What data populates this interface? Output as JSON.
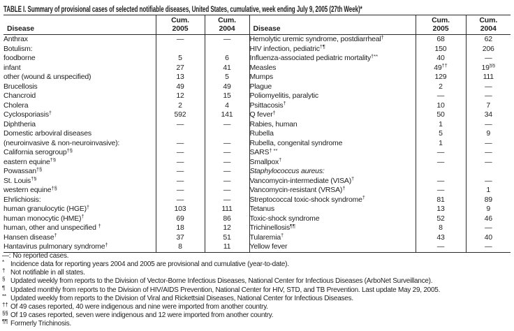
{
  "title": "TABLE I. Summary of provisional cases of selected notifiable diseases, United States, cumulative, week ending July 9, 2005 (27th Week)*",
  "header": {
    "disease": "Disease",
    "cum": "Cum.",
    "y2005": "2005",
    "y2004": "2004"
  },
  "left_rows": [
    {
      "label": "Anthrax",
      "indent": 0,
      "v05": "—",
      "v04": "—"
    },
    {
      "label": "Botulism:",
      "indent": 0,
      "v05": "",
      "v04": ""
    },
    {
      "label": "foodborne",
      "indent": 2,
      "v05": "5",
      "v04": "6"
    },
    {
      "label": "infant",
      "indent": 2,
      "v05": "27",
      "v04": "41"
    },
    {
      "label": "other (wound & unspecified)",
      "indent": 2,
      "v05": "13",
      "v04": "5"
    },
    {
      "label": "Brucellosis",
      "indent": 0,
      "v05": "49",
      "v04": "49"
    },
    {
      "label": "Chancroid",
      "indent": 0,
      "v05": "12",
      "v04": "15"
    },
    {
      "label": "Cholera",
      "indent": 0,
      "v05": "2",
      "v04": "4"
    },
    {
      "label": "Cyclosporiasis",
      "sup": "†",
      "indent": 0,
      "v05": "592",
      "v04": "141"
    },
    {
      "label": "Diphtheria",
      "indent": 0,
      "v05": "—",
      "v04": "—"
    },
    {
      "label": "Domestic arboviral diseases",
      "indent": 0,
      "v05": "",
      "v04": ""
    },
    {
      "label": "(neuroinvasive & non-neuroinvasive):",
      "indent": 1,
      "v05": "—",
      "v04": "—"
    },
    {
      "label": "California serogroup",
      "sup": "†§",
      "indent": 2,
      "v05": "—",
      "v04": "—"
    },
    {
      "label": "eastern equine",
      "sup": "†§",
      "indent": 2,
      "v05": "—",
      "v04": "—"
    },
    {
      "label": "Powassan",
      "sup": "†§",
      "indent": 2,
      "v05": "—",
      "v04": "—"
    },
    {
      "label": "St. Louis",
      "sup": "†§",
      "indent": 2,
      "v05": "—",
      "v04": "—"
    },
    {
      "label": "western equine",
      "sup": "†§",
      "indent": 2,
      "v05": "—",
      "v04": "—"
    },
    {
      "label": "Ehrlichiosis:",
      "indent": 0,
      "v05": "—",
      "v04": "—"
    },
    {
      "label": "human granulocytic (HGE)",
      "sup": "†",
      "indent": 2,
      "v05": "103",
      "v04": "111"
    },
    {
      "label": "human monocytic (HME)",
      "sup": "†",
      "indent": 2,
      "v05": "69",
      "v04": "86"
    },
    {
      "label": "human, other and unspecified ",
      "sup": "†",
      "indent": 2,
      "v05": "18",
      "v04": "12"
    },
    {
      "label": "Hansen disease",
      "sup": "†",
      "indent": 0,
      "v05": "37",
      "v04": "51"
    },
    {
      "label": "Hantavirus pulmonary syndrome",
      "sup": "†",
      "indent": 0,
      "v05": "8",
      "v04": "11"
    }
  ],
  "right_rows": [
    {
      "label": "Hemolytic uremic syndrome, postdiarrheal",
      "sup": "†",
      "indent": 0,
      "v05": "68",
      "v04": "62"
    },
    {
      "label": "HIV infection, pediatric",
      "sup": "†¶",
      "indent": 0,
      "v05": "150",
      "v04": "206"
    },
    {
      "label": "Influenza-associated pediatric mortality",
      "sup": "†**",
      "indent": 0,
      "v05": "40",
      "v04": "—"
    },
    {
      "label": "Measles",
      "indent": 0,
      "v05": "49",
      "v05sup": "††",
      "v04": "19",
      "v04sup": "§§"
    },
    {
      "label": "Mumps",
      "indent": 0,
      "v05": "129",
      "v04": "111"
    },
    {
      "label": "Plague",
      "indent": 0,
      "v05": "2",
      "v04": "—"
    },
    {
      "label": "Poliomyelitis, paralytic",
      "indent": 0,
      "v05": "—",
      "v04": "—"
    },
    {
      "label": "Psittacosis",
      "sup": "†",
      "indent": 0,
      "v05": "10",
      "v04": "7"
    },
    {
      "label": "Q fever",
      "sup": "†",
      "indent": 0,
      "v05": "50",
      "v04": "34"
    },
    {
      "label": "Rabies, human",
      "indent": 0,
      "v05": "1",
      "v04": "—"
    },
    {
      "label": "Rubella",
      "indent": 0,
      "v05": "5",
      "v04": "9"
    },
    {
      "label": "Rubella, congenital syndrome",
      "indent": 0,
      "v05": "1",
      "v04": "—"
    },
    {
      "label": "SARS",
      "sup": "† **",
      "indent": 0,
      "v05": "—",
      "v04": "—"
    },
    {
      "label": "Smallpox",
      "sup": "†",
      "indent": 0,
      "v05": "—",
      "v04": "—"
    },
    {
      "label": "Staphylococcus aureus:",
      "italic": true,
      "indent": 0,
      "v05": "",
      "v04": ""
    },
    {
      "label": "Vancomycin-intermediate (VISA)",
      "sup": "†",
      "indent": 2,
      "v05": "—",
      "v04": "—"
    },
    {
      "label": "Vancomycin-resistant (VRSA)",
      "sup": "†",
      "indent": 2,
      "v05": "—",
      "v04": "1"
    },
    {
      "label": "Streptococcal toxic-shock syndrome",
      "sup": "†",
      "indent": 0,
      "v05": "81",
      "v04": "89"
    },
    {
      "label": "Tetanus",
      "indent": 0,
      "v05": "13",
      "v04": "9"
    },
    {
      "label": "Toxic-shock syndrome",
      "indent": 0,
      "v05": "52",
      "v04": "46"
    },
    {
      "label": "Trichinellosis",
      "sup": "¶¶",
      "indent": 0,
      "v05": "8",
      "v04": "—"
    },
    {
      "label": "Tularemia",
      "sup": "†",
      "indent": 0,
      "v05": "43",
      "v04": "40"
    },
    {
      "label": "Yellow fever",
      "indent": 0,
      "v05": "—",
      "v04": "—"
    }
  ],
  "footnotes": [
    {
      "marker": "—:",
      "raised": false,
      "text": "No reported cases."
    },
    {
      "marker": "*",
      "raised": true,
      "text": "Incidence data for reporting years 2004 and 2005 are provisional and cumulative (year-to-date)."
    },
    {
      "marker": "†",
      "raised": true,
      "text": "Not notifiable in all states."
    },
    {
      "marker": "§",
      "raised": true,
      "text": "Updated weekly from reports to the Division of Vector-Borne Infectious Diseases, National Center for Infectious Diseases (ArboNet Surveillance)."
    },
    {
      "marker": "¶",
      "raised": true,
      "text": "Updated monthly from reports to the Division of HIV/AIDS Prevention, National Center for HIV, STD, and TB Prevention. Last update May 29, 2005."
    },
    {
      "marker": "**",
      "raised": true,
      "text": "Updated weekly from reports to the Division of Viral and Rickettsial Diseases, National Center for Infectious Diseases."
    },
    {
      "marker": "††",
      "raised": true,
      "text": "Of 49 cases reported, 40 were indigenous and nine were imported from another country."
    },
    {
      "marker": "§§",
      "raised": true,
      "text": "Of 19 cases reported, seven were indigenous and 12 were imported from another country."
    },
    {
      "marker": "¶¶",
      "raised": true,
      "text": "Formerly Trichinosis."
    }
  ]
}
